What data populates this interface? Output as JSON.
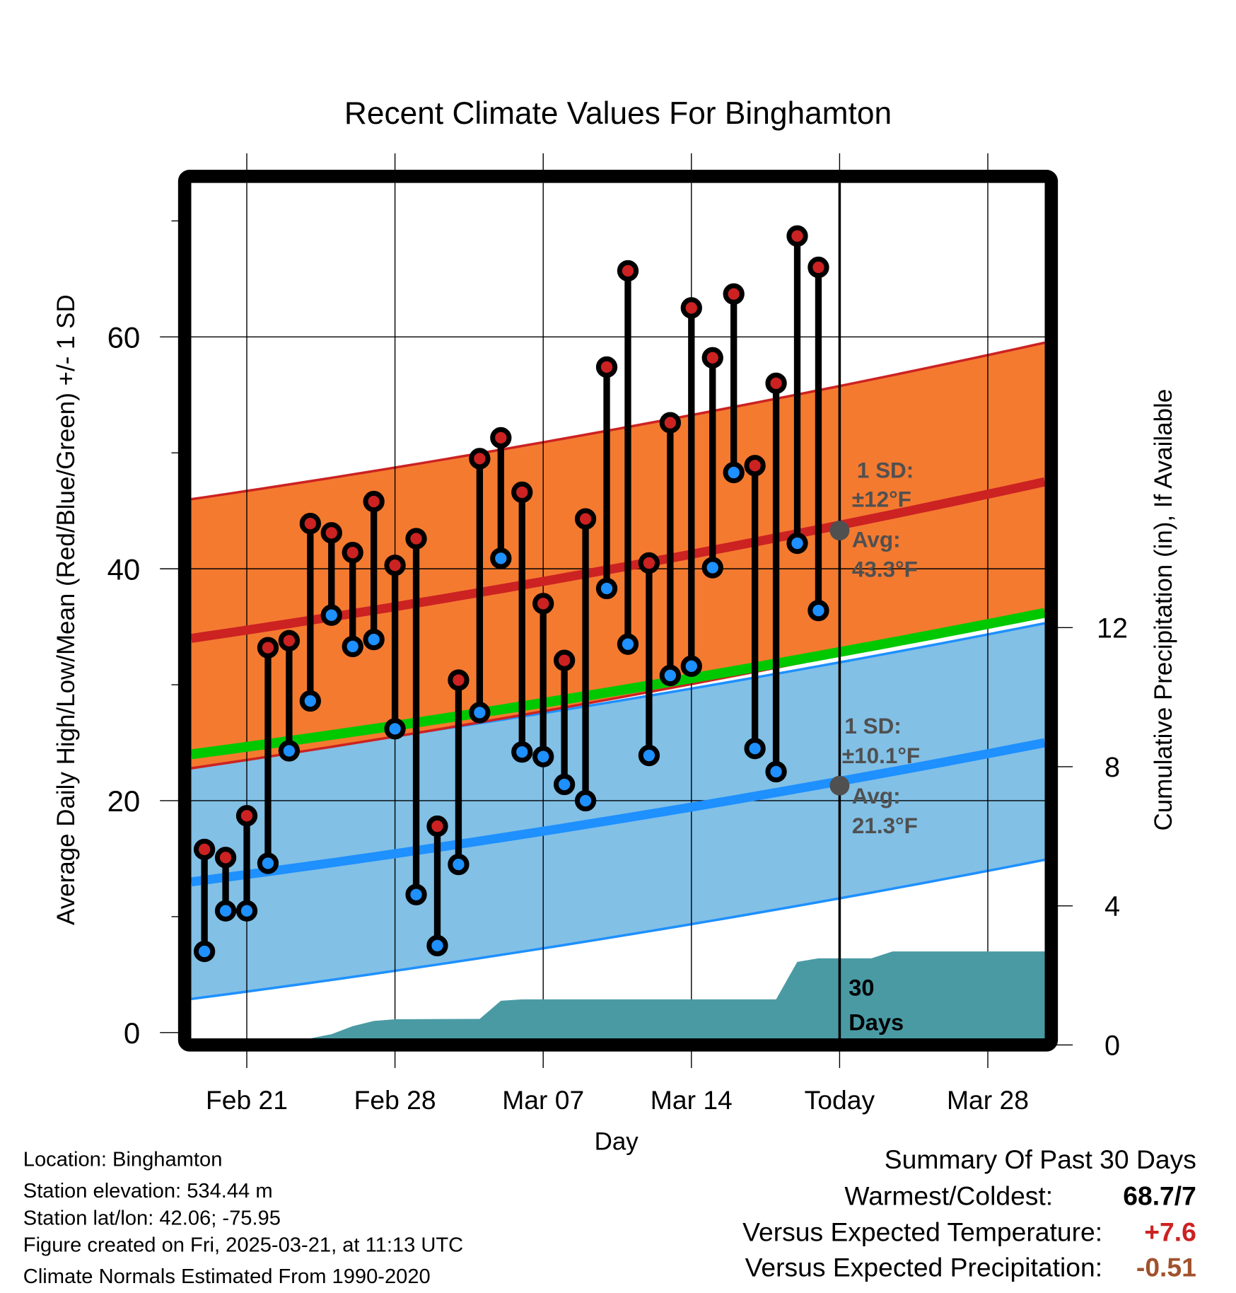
{
  "chart_data": {
    "type": "line",
    "title": "Recent Climate Values For Binghamton",
    "xlabel": "Day",
    "ylabel": "Average Daily High/Low/Mean (Red/Blue/Green) +/- 1 SD",
    "y2label": "Cumulative Precipitation (in), If Available",
    "ylim": [
      0,
      73
    ],
    "y2lim": [
      0,
      17.3
    ],
    "x_range": [
      "Feb 18",
      "Mar 31"
    ],
    "yticks": [
      "0",
      "20",
      "40",
      "60"
    ],
    "y2ticks": [
      "0",
      "4",
      "8",
      "12"
    ],
    "xticks": [
      "Feb 21",
      "Feb 28",
      "Mar 07",
      "Mar 14",
      "Today",
      "Mar 28"
    ],
    "xtick_days": [
      2,
      9,
      16,
      23,
      30,
      37
    ],
    "today_day": 30,
    "grid": true,
    "dates": [
      "Feb 19",
      "Feb 20",
      "Feb 21",
      "Feb 22",
      "Feb 23",
      "Feb 24",
      "Feb 25",
      "Feb 26",
      "Feb 27",
      "Feb 28",
      "Mar 01",
      "Mar 02",
      "Mar 03",
      "Mar 04",
      "Mar 05",
      "Mar 06",
      "Mar 07",
      "Mar 08",
      "Mar 09",
      "Mar 10",
      "Mar 11",
      "Mar 12",
      "Mar 13",
      "Mar 14",
      "Mar 15",
      "Mar 16",
      "Mar 17",
      "Mar 18",
      "Mar 19",
      "Mar 20"
    ],
    "series": [
      {
        "name": "Daily High",
        "color": "#cc2222",
        "values": [
          15.8,
          15.1,
          18.7,
          33.2,
          33.8,
          43.9,
          43.1,
          41.4,
          45.8,
          40.3,
          42.6,
          17.8,
          30.4,
          49.5,
          51.3,
          46.6,
          37.0,
          32.1,
          44.3,
          57.4,
          65.7,
          40.5,
          52.6,
          62.5,
          58.2,
          63.7,
          48.9,
          56.0,
          68.7,
          66.0
        ]
      },
      {
        "name": "Daily Low",
        "color": "#1e90ff",
        "values": [
          7.0,
          10.5,
          10.5,
          14.6,
          24.3,
          28.6,
          36.0,
          33.3,
          33.9,
          26.2,
          11.9,
          7.5,
          14.5,
          27.6,
          40.9,
          24.2,
          23.8,
          21.4,
          20.0,
          38.3,
          33.5,
          23.9,
          30.8,
          31.6,
          40.1,
          48.3,
          24.5,
          22.5,
          42.2,
          36.4
        ]
      }
    ],
    "normals": {
      "high_mean": {
        "start": 34.0,
        "end": 47.5,
        "color": "#cc2222"
      },
      "high_sd": 12,
      "low_mean": {
        "start": 13.0,
        "end": 25.0,
        "color": "#1e90ff"
      },
      "low_sd": 10.1,
      "mean": {
        "start": 24.0,
        "end": 36.2,
        "color": "#00c800"
      },
      "high_band_color": "#f47a30",
      "low_band_color": "#82c0e6"
    },
    "precip_cumulative": {
      "color": "#4a9aa4",
      "points": [
        [
          5.0,
          0
        ],
        [
          6.0,
          0.12
        ],
        [
          7.0,
          0.35
        ],
        [
          8.0,
          0.5
        ],
        [
          9.0,
          0.55
        ],
        [
          13.0,
          0.56
        ],
        [
          14.0,
          1.08
        ],
        [
          15.0,
          1.12
        ],
        [
          27.0,
          1.12
        ],
        [
          28.0,
          2.2
        ],
        [
          29.0,
          2.3
        ],
        [
          31.5,
          2.3
        ],
        [
          32.5,
          2.5
        ],
        [
          39.7,
          2.5
        ]
      ]
    },
    "annotations": {
      "high_sd_label": "1 SD:",
      "high_sd_value": "±12°F",
      "high_avg_label": "Avg:",
      "high_avg_value": "43.3°F",
      "low_sd_label": "1 SD:",
      "low_sd_value": "±10.1°F",
      "low_avg_label": "Avg:",
      "low_avg_value": "21.3°F",
      "high_avg_today": 43.3,
      "low_avg_today": 21.3,
      "window_label_1": "30",
      "window_label_2": "Days"
    }
  },
  "info": {
    "lines": [
      "Location: Binghamton",
      "Station elevation: 534.44 m",
      "Station lat/lon: 42.06; -75.95",
      "Figure created on Fri, 2025-03-21, at 11:13 UTC",
      "Climate Normals Estimated From 1990-2020"
    ]
  },
  "summary": {
    "title": "Summary Of Past 30 Days",
    "rows": [
      {
        "label": "Warmest/Coldest:",
        "value": "68.7/7",
        "color": "#000000"
      },
      {
        "label": "Versus Expected Temperature:",
        "value": "+7.6",
        "color": "#cc2222"
      },
      {
        "label": "Versus Expected Precipitation:",
        "value": "-0.51",
        "color": "#a0522d"
      }
    ]
  }
}
